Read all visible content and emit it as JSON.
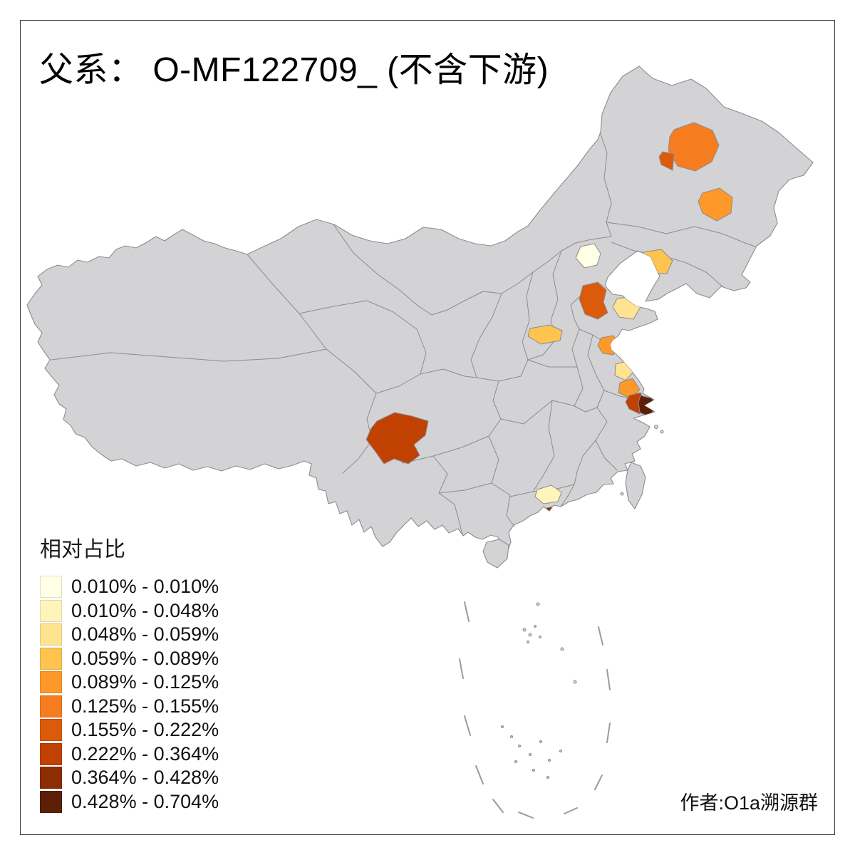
{
  "title": "父系： O-MF122709_ (不含下游)",
  "attribution": "作者:O1a溯源群",
  "legend": {
    "title": "相对占比",
    "items": [
      {
        "label": "0.010% - 0.010%",
        "color": "#FFFFE5"
      },
      {
        "label": "0.010% - 0.048%",
        "color": "#FFF5BC"
      },
      {
        "label": "0.048% - 0.059%",
        "color": "#FEE391"
      },
      {
        "label": "0.059% - 0.089%",
        "color": "#FEC44F"
      },
      {
        "label": "0.089% - 0.125%",
        "color": "#FE9929"
      },
      {
        "label": "0.125% - 0.155%",
        "color": "#F57D20"
      },
      {
        "label": "0.155% - 0.222%",
        "color": "#DC5A0B"
      },
      {
        "label": "0.222% - 0.364%",
        "color": "#C04102"
      },
      {
        "label": "0.364% - 0.428%",
        "color": "#8C2D04"
      },
      {
        "label": "0.428% - 0.704%",
        "color": "#5C2006"
      }
    ]
  },
  "map": {
    "base_fill": "#D3D3D6",
    "border_color": "#8C8C8F",
    "dash_color": "#9A9AA0",
    "regions": [
      {
        "name": "beijing",
        "bin": 0
      },
      {
        "name": "liaoning-dalian",
        "bin": 3
      },
      {
        "name": "heilongjiang-main",
        "bin": 5
      },
      {
        "name": "heilongjiang-west",
        "bin": 6
      },
      {
        "name": "jilin",
        "bin": 4
      },
      {
        "name": "shandong-central",
        "bin": 6
      },
      {
        "name": "shandong-east",
        "bin": 2
      },
      {
        "name": "henan",
        "bin": 3
      },
      {
        "name": "jiangsu-north",
        "bin": 4
      },
      {
        "name": "jiangsu-coast-north",
        "bin": 2
      },
      {
        "name": "jiangsu-coast-south",
        "bin": 4
      },
      {
        "name": "suzhou-area",
        "bin": 7
      },
      {
        "name": "shanghai",
        "bin": 9
      },
      {
        "name": "sichuan-southwest",
        "bin": 7
      },
      {
        "name": "guangdong-pearl",
        "bin": 1
      },
      {
        "name": "guangdong-dark-spot",
        "bin": 8
      }
    ]
  }
}
